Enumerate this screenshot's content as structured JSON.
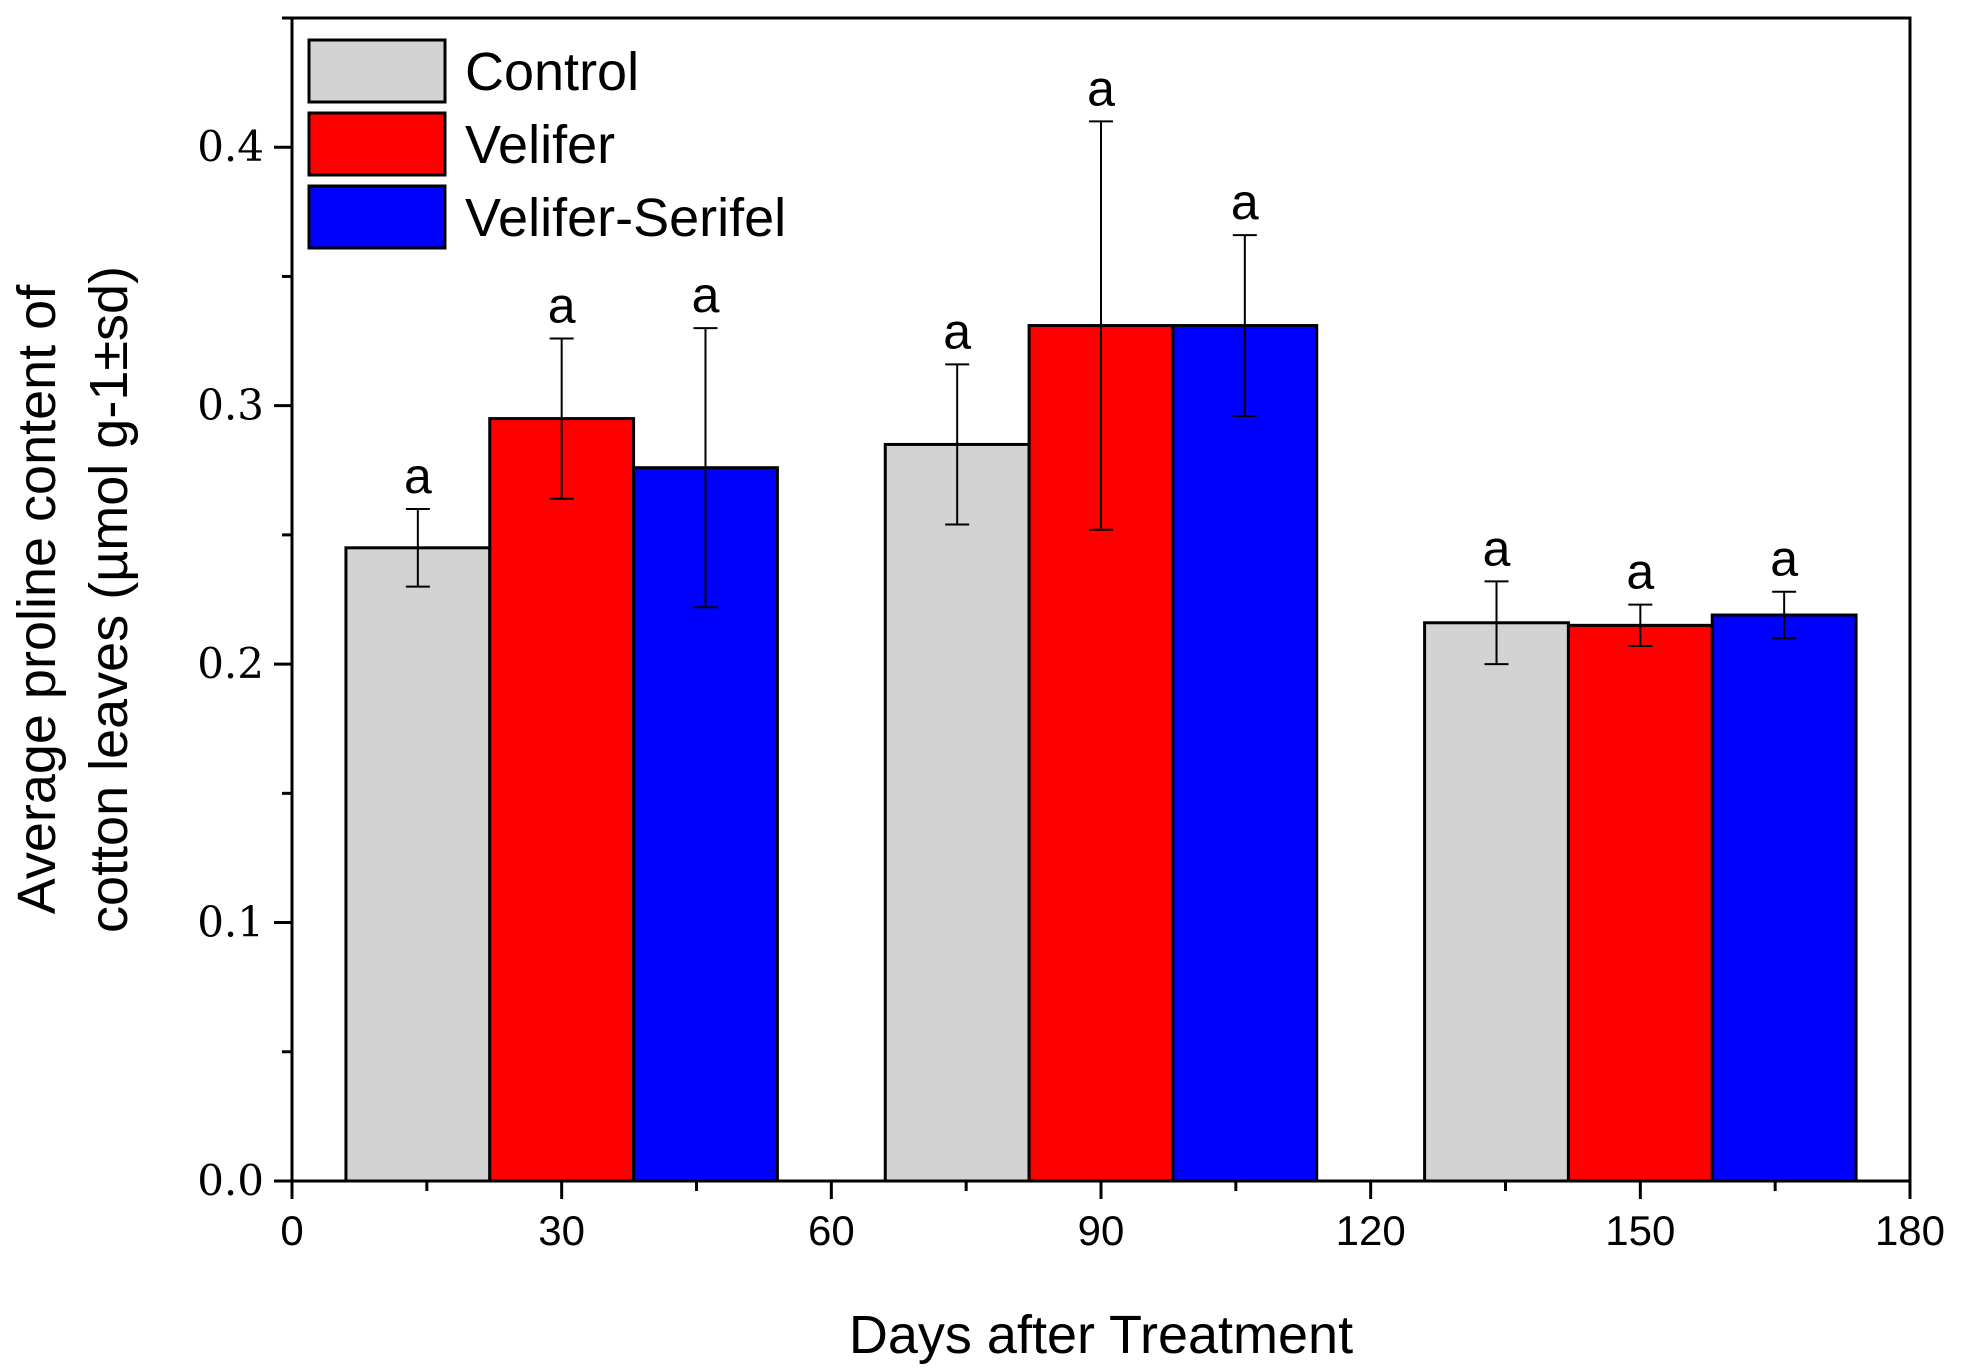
{
  "chart_data": {
    "type": "bar",
    "title": "",
    "xlabel": "Days after Treatment",
    "ylabel_lines": [
      "Average proline content of",
      "cotton leaves (µmol g-1±sd)"
    ],
    "xlim": [
      0,
      180
    ],
    "ylim": [
      0,
      0.45
    ],
    "xticks": [
      0,
      30,
      60,
      90,
      120,
      150,
      180
    ],
    "xtick_labels": [
      "0",
      "30",
      "60",
      "90",
      "120",
      "150",
      "180"
    ],
    "yticks": [
      0.0,
      0.1,
      0.2,
      0.3,
      0.4
    ],
    "ytick_labels": [
      "0.0",
      "0.1",
      "0.2",
      "0.3",
      "0.4"
    ],
    "grid": false,
    "legend_position": "top-left",
    "bar_width": 16,
    "series": [
      {
        "name": "Control",
        "color": "#d3d3d3",
        "x": [
          14,
          74,
          134
        ],
        "values": [
          0.245,
          0.285,
          0.216
        ],
        "error": [
          0.015,
          0.031,
          0.016
        ],
        "labels": [
          "a",
          "a",
          "a"
        ]
      },
      {
        "name": "Velifer",
        "color": "#ff0000",
        "x": [
          30,
          90,
          150
        ],
        "values": [
          0.295,
          0.331,
          0.215
        ],
        "error": [
          0.031,
          0.079,
          0.008
        ],
        "labels": [
          "a",
          "a",
          "a"
        ]
      },
      {
        "name": "Velifer-Serifel",
        "color": "#0000ff",
        "x": [
          46,
          106,
          166
        ],
        "values": [
          0.276,
          0.331,
          0.219
        ],
        "error": [
          0.054,
          0.035,
          0.009
        ],
        "labels": [
          "a",
          "a",
          "a"
        ]
      }
    ]
  }
}
